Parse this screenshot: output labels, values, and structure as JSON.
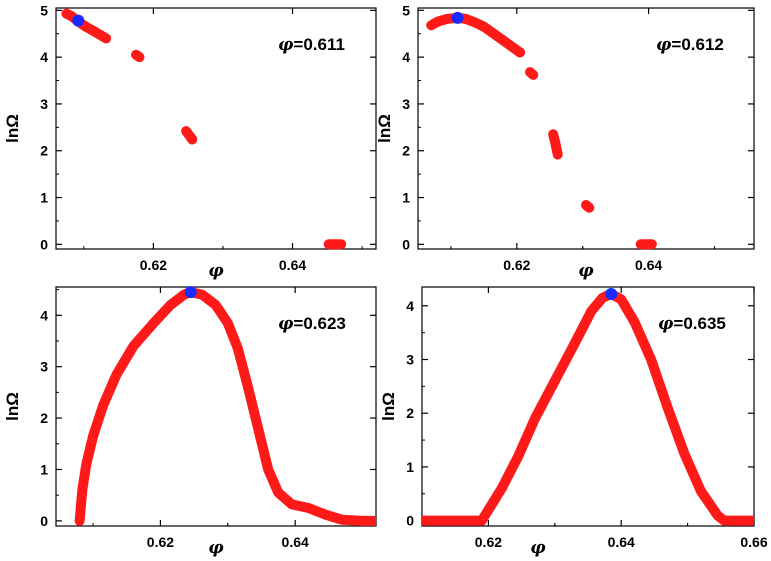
{
  "colors": {
    "data": "#ff1a1a",
    "highlight": "#1a2bff",
    "axis": "#000000"
  },
  "chart_data": [
    {
      "type": "scatter",
      "title": "",
      "annotation": {
        "symbol": "φ",
        "text": "=0.611"
      },
      "xlabel": "φ",
      "ylabel": "lnΩ",
      "xlim": [
        0.606,
        0.652
      ],
      "ylim": [
        -0.1,
        5.05
      ],
      "xticks": [
        0.62,
        0.64
      ],
      "xtick_labels": [
        "0.62",
        "0.64"
      ],
      "yticks": [
        0,
        1,
        2,
        3,
        4,
        5
      ],
      "ytick_labels": [
        "0",
        "1",
        "2",
        "3",
        "4",
        "5"
      ],
      "series": [
        {
          "name": "data",
          "segments": [
            [
              [
                0.6075,
                4.93
              ],
              [
                0.6082,
                4.88
              ],
              [
                0.6092,
                4.76
              ],
              [
                0.6103,
                4.65
              ],
              [
                0.6115,
                4.55
              ],
              [
                0.6132,
                4.4
              ]
            ],
            [
              [
                0.6175,
                4.05
              ],
              [
                0.618,
                4.0
              ]
            ],
            [
              [
                0.6247,
                2.42
              ],
              [
                0.6252,
                2.32
              ],
              [
                0.6256,
                2.24
              ]
            ],
            [
              [
                0.6452,
                0.0
              ],
              [
                0.647,
                0.0
              ]
            ]
          ]
        },
        {
          "name": "maximum",
          "points": [
            [
              0.6092,
              4.78
            ]
          ]
        }
      ]
    },
    {
      "type": "scatter",
      "title": "",
      "annotation": {
        "symbol": "φ",
        "text": "=0.612"
      },
      "xlabel": "φ",
      "ylabel": "lnΩ",
      "xlim": [
        0.605,
        0.656
      ],
      "ylim": [
        -0.1,
        5.05
      ],
      "xticks": [
        0.62,
        0.64
      ],
      "xtick_labels": [
        "0.62",
        "0.64"
      ],
      "yticks": [
        0,
        1,
        2,
        3,
        4,
        5
      ],
      "ytick_labels": [
        "0",
        "1",
        "2",
        "3",
        "4",
        "5"
      ],
      "series": [
        {
          "name": "data",
          "segments": [
            [
              [
                0.607,
                4.68
              ],
              [
                0.608,
                4.76
              ],
              [
                0.6095,
                4.82
              ],
              [
                0.611,
                4.84
              ],
              [
                0.6122,
                4.82
              ],
              [
                0.6135,
                4.75
              ],
              [
                0.615,
                4.65
              ],
              [
                0.617,
                4.45
              ],
              [
                0.619,
                4.25
              ],
              [
                0.6205,
                4.1
              ]
            ],
            [
              [
                0.622,
                3.68
              ],
              [
                0.6225,
                3.62
              ]
            ],
            [
              [
                0.6255,
                2.35
              ],
              [
                0.6258,
                2.2
              ],
              [
                0.626,
                2.05
              ],
              [
                0.6262,
                1.92
              ]
            ],
            [
              [
                0.6305,
                0.84
              ],
              [
                0.631,
                0.78
              ]
            ],
            [
              [
                0.6388,
                0.0
              ],
              [
                0.6405,
                0.0
              ]
            ]
          ]
        },
        {
          "name": "maximum",
          "points": [
            [
              0.611,
              4.84
            ]
          ]
        }
      ]
    },
    {
      "type": "scatter",
      "title": "",
      "annotation": {
        "symbol": "φ",
        "text": "=0.623"
      },
      "xlabel": "φ",
      "ylabel": "lnΩ",
      "xlim": [
        0.6045,
        0.652
      ],
      "ylim": [
        -0.1,
        4.55
      ],
      "xticks": [
        0.62,
        0.64
      ],
      "xtick_labels": [
        "0.62",
        "0.64"
      ],
      "yticks": [
        0,
        1,
        2,
        3,
        4
      ],
      "ytick_labels": [
        "0",
        "1",
        "2",
        "3",
        "4"
      ],
      "series": [
        {
          "name": "data",
          "segments": [
            [
              [
                0.608,
                0.0
              ],
              [
                0.6084,
                0.6
              ],
              [
                0.609,
                1.1
              ],
              [
                0.61,
                1.65
              ],
              [
                0.6115,
                2.25
              ],
              [
                0.6135,
                2.85
              ],
              [
                0.616,
                3.4
              ],
              [
                0.619,
                3.85
              ],
              [
                0.6215,
                4.2
              ],
              [
                0.6235,
                4.4
              ],
              [
                0.6245,
                4.45
              ],
              [
                0.6262,
                4.4
              ],
              [
                0.6282,
                4.2
              ],
              [
                0.63,
                3.85
              ],
              [
                0.6315,
                3.35
              ],
              [
                0.633,
                2.6
              ],
              [
                0.6345,
                1.8
              ],
              [
                0.636,
                1.0
              ],
              [
                0.6375,
                0.55
              ],
              [
                0.6395,
                0.32
              ],
              [
                0.642,
                0.25
              ],
              [
                0.6445,
                0.12
              ],
              [
                0.647,
                0.02
              ],
              [
                0.65,
                0.0
              ],
              [
                0.652,
                0.0
              ]
            ]
          ]
        },
        {
          "name": "maximum",
          "points": [
            [
              0.6245,
              4.45
            ]
          ]
        }
      ]
    },
    {
      "type": "scatter",
      "title": "",
      "annotation": {
        "symbol": "φ",
        "text": "=0.635"
      },
      "xlabel": "φ",
      "ylabel": "lnΩ",
      "xlim": [
        0.61,
        0.66
      ],
      "ylim": [
        -0.1,
        4.35
      ],
      "xticks": [
        0.62,
        0.64,
        0.66
      ],
      "xtick_labels": [
        "0.62",
        "0.64",
        "0.66"
      ],
      "yticks": [
        0,
        1,
        2,
        3,
        4
      ],
      "ytick_labels": [
        "0",
        "1",
        "2",
        "3",
        "4"
      ],
      "series": [
        {
          "name": "data",
          "segments": [
            [
              [
                0.61,
                0.0
              ],
              [
                0.619,
                0.0
              ],
              [
                0.62,
                0.2
              ],
              [
                0.622,
                0.6
              ],
              [
                0.6245,
                1.2
              ],
              [
                0.627,
                1.9
              ],
              [
                0.63,
                2.6
              ],
              [
                0.633,
                3.3
              ],
              [
                0.6355,
                3.9
              ],
              [
                0.6372,
                4.15
              ],
              [
                0.6385,
                4.22
              ],
              [
                0.64,
                4.12
              ],
              [
                0.642,
                3.7
              ],
              [
                0.6445,
                3.0
              ],
              [
                0.647,
                2.1
              ],
              [
                0.6495,
                1.25
              ],
              [
                0.652,
                0.55
              ],
              [
                0.6545,
                0.1
              ],
              [
                0.6555,
                0.0
              ],
              [
                0.66,
                0.0
              ]
            ]
          ]
        },
        {
          "name": "maximum",
          "points": [
            [
              0.6385,
              4.22
            ]
          ]
        }
      ]
    }
  ]
}
